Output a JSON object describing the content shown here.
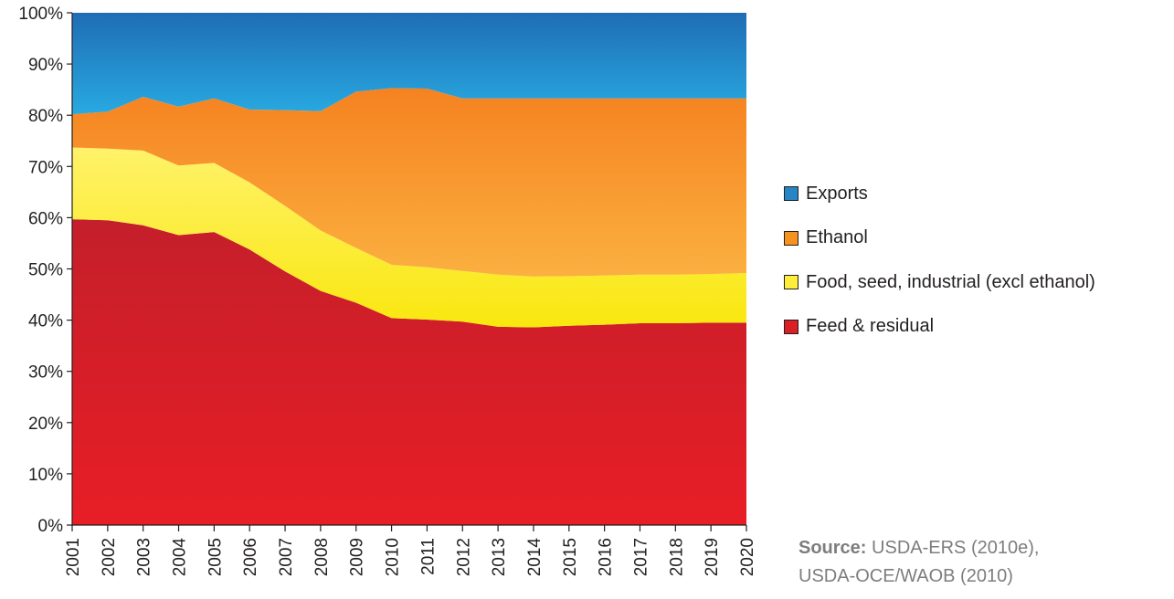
{
  "chart_data": {
    "type": "area",
    "stacked": true,
    "percent": true,
    "x": [
      2001,
      2002,
      2003,
      2004,
      2005,
      2006,
      2007,
      2008,
      2009,
      2010,
      2011,
      2012,
      2013,
      2014,
      2015,
      2016,
      2017,
      2018,
      2019,
      2020
    ],
    "series": [
      {
        "name": "Feed & residual",
        "color": "#d92027",
        "values": [
          59.7,
          59.5,
          58.5,
          56.6,
          57.2,
          53.8,
          49.5,
          45.7,
          43.4,
          40.4,
          40.1,
          39.7,
          38.7,
          38.6,
          38.9,
          39.1,
          39.4,
          39.4,
          39.5,
          39.5
        ]
      },
      {
        "name": "Food, seed, industrial (excl ethanol)",
        "color": "#fcee3a",
        "values": [
          14.0,
          14.0,
          14.6,
          13.6,
          13.5,
          13.1,
          12.8,
          11.8,
          10.7,
          10.4,
          10.2,
          9.9,
          10.2,
          9.9,
          9.7,
          9.6,
          9.5,
          9.5,
          9.5,
          9.7
        ]
      },
      {
        "name": "Ethanol",
        "color": "#f6921e",
        "values": [
          6.5,
          7.2,
          10.5,
          11.5,
          12.6,
          14.2,
          18.7,
          23.3,
          30.5,
          34.5,
          34.9,
          33.7,
          34.4,
          34.8,
          34.7,
          34.6,
          34.4,
          34.4,
          34.3,
          34.1
        ]
      },
      {
        "name": "Exports",
        "color": "#2585c5",
        "values": [
          19.8,
          19.3,
          16.4,
          18.3,
          16.7,
          18.9,
          19.0,
          19.2,
          15.4,
          14.7,
          14.8,
          16.7,
          16.7,
          16.7,
          16.7,
          16.7,
          16.7,
          16.7,
          16.7,
          16.7
        ]
      }
    ],
    "y_ticks": [
      "0%",
      "10%",
      "20%",
      "30%",
      "40%",
      "50%",
      "60%",
      "70%",
      "80%",
      "90%",
      "100%"
    ],
    "ylim": [
      0,
      100
    ],
    "legend_position": "right",
    "grid": false
  },
  "legend": {
    "items": [
      {
        "label": "Exports",
        "color": "#2585c5"
      },
      {
        "label": "Ethanol",
        "color": "#f6921e"
      },
      {
        "label": "Food, seed, industrial (excl ethanol)",
        "color": "#fcee3a"
      },
      {
        "label": "Feed & residual",
        "color": "#d92027"
      }
    ]
  },
  "source": {
    "label": "Source:",
    "line1": "USDA-ERS (2010e),",
    "line2": "USDA-OCE/WAOB (2010)"
  }
}
